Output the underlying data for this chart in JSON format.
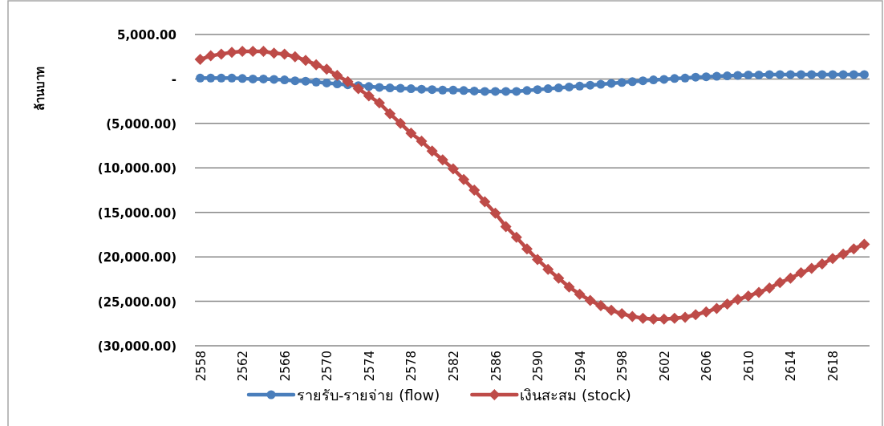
{
  "chart_data": {
    "type": "line",
    "ylabel": "ล้านบาท",
    "x": [
      2558,
      2559,
      2560,
      2561,
      2562,
      2563,
      2564,
      2565,
      2566,
      2567,
      2568,
      2569,
      2570,
      2571,
      2572,
      2573,
      2574,
      2575,
      2576,
      2577,
      2578,
      2579,
      2580,
      2581,
      2582,
      2583,
      2584,
      2585,
      2586,
      2587,
      2588,
      2589,
      2590,
      2591,
      2592,
      2593,
      2594,
      2595,
      2596,
      2597,
      2598,
      2599,
      2600,
      2601,
      2602,
      2603,
      2604,
      2605,
      2606,
      2607,
      2608,
      2609,
      2610,
      2611,
      2612,
      2613,
      2614,
      2615,
      2616,
      2617,
      2618,
      2619,
      2620,
      2621
    ],
    "series": [
      {
        "name": "รายรับ-รายจ่าย (flow)",
        "color": "#4a7ebb",
        "marker": "circle",
        "values": [
          100,
          100,
          100,
          100,
          50,
          0,
          0,
          -50,
          -100,
          -200,
          -250,
          -350,
          -450,
          -550,
          -650,
          -750,
          -850,
          -950,
          -1000,
          -1050,
          -1100,
          -1150,
          -1200,
          -1250,
          -1250,
          -1300,
          -1350,
          -1400,
          -1400,
          -1400,
          -1400,
          -1300,
          -1200,
          -1100,
          -1000,
          -900,
          -800,
          -700,
          -600,
          -500,
          -400,
          -300,
          -200,
          -100,
          -50,
          50,
          100,
          200,
          250,
          300,
          350,
          400,
          450,
          450,
          500,
          500,
          500,
          500,
          500,
          500,
          500,
          500,
          500,
          500
        ]
      },
      {
        "name": "เงินสะสม (stock)",
        "color": "#be4b48",
        "marker": "diamond",
        "values": [
          2200,
          2600,
          2800,
          3000,
          3100,
          3100,
          3100,
          2900,
          2800,
          2500,
          2100,
          1600,
          1100,
          400,
          -300,
          -1100,
          -1900,
          -2700,
          -3900,
          -5000,
          -6100,
          -7000,
          -8100,
          -9100,
          -10100,
          -11300,
          -12500,
          -13800,
          -15100,
          -16600,
          -17800,
          -19100,
          -20300,
          -21400,
          -22400,
          -23400,
          -24200,
          -24900,
          -25500,
          -26000,
          -26400,
          -26700,
          -26900,
          -27000,
          -27000,
          -26900,
          -26800,
          -26500,
          -26200,
          -25800,
          -25300,
          -24800,
          -24400,
          -24000,
          -23500,
          -22900,
          -22400,
          -21800,
          -21300,
          -20800,
          -20200,
          -19700,
          -19100,
          -18600
        ]
      }
    ],
    "xlim": [
      2557.5,
      2621.5
    ],
    "xticks": [
      2558,
      2562,
      2566,
      2570,
      2574,
      2578,
      2582,
      2586,
      2590,
      2594,
      2598,
      2602,
      2606,
      2610,
      2614,
      2618
    ],
    "ylim": [
      -30000,
      5000
    ],
    "yticks": [
      {
        "value": 5000,
        "label": "5,000.00"
      },
      {
        "value": 0,
        "label": "-"
      },
      {
        "value": -5000,
        "label": "(5,000.00)"
      },
      {
        "value": -10000,
        "label": "(10,000.00)"
      },
      {
        "value": -15000,
        "label": "(15,000.00)"
      },
      {
        "value": -20000,
        "label": "(20,000.00)"
      },
      {
        "value": -25000,
        "label": "(25,000.00)"
      },
      {
        "value": -30000,
        "label": "(30,000.00)"
      }
    ],
    "grid": "y",
    "legend": "bottom",
    "line_style": "solid"
  }
}
